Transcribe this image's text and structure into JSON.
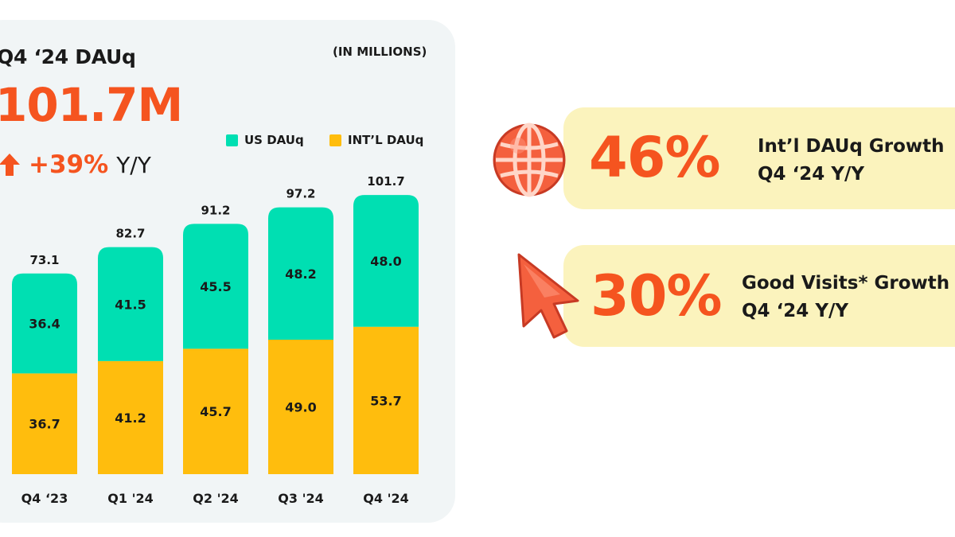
{
  "header": {
    "title": "Q4 ‘24 DAUq",
    "units": "(IN MILLIONS)",
    "value": "101.7M",
    "growth": "+39%",
    "growth_suffix": "Y/Y"
  },
  "colors": {
    "accent": "#f5541f",
    "us": "#00dfb2",
    "intl": "#ffbd0d",
    "card": "#f1f5f6",
    "pill": "#fbf3bd"
  },
  "chart_data": {
    "type": "bar",
    "stacked": true,
    "categories": [
      "Q4 ‘23",
      "Q1 '24",
      "Q2 '24",
      "Q3 '24",
      "Q4 '24"
    ],
    "series": [
      {
        "name": "INT'L DAUq",
        "values": [
          36.7,
          41.2,
          45.7,
          49.0,
          53.7
        ]
      },
      {
        "name": "US DAUq",
        "values": [
          36.4,
          41.5,
          45.5,
          48.2,
          48.0
        ]
      }
    ],
    "totals": [
      73.1,
      82.7,
      91.2,
      97.2,
      101.7
    ],
    "legend_position": "top-right",
    "grid": false
  },
  "legend": {
    "us": "US DAUq",
    "intl": "INT’L DAUq"
  },
  "stats": [
    {
      "value": "46%",
      "line1": "Int’l DAUq Growth",
      "line2": "Q4 ‘24 Y/Y",
      "icon": "globe-icon"
    },
    {
      "value": "30%",
      "line1": "Good Visits* Growth",
      "line2": "Q4 ‘24 Y/Y",
      "icon": "cursor-arrow-icon"
    }
  ]
}
